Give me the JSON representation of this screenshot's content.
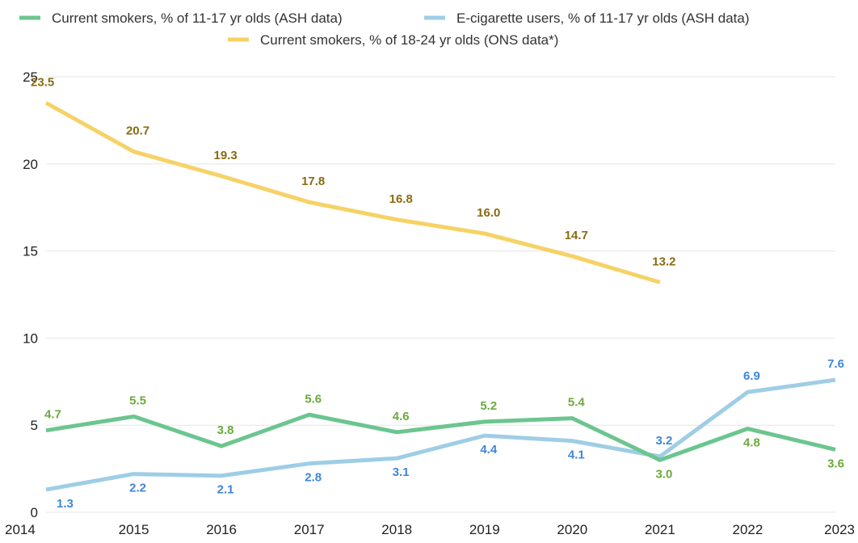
{
  "chart_data": {
    "type": "line",
    "title": "",
    "xlabel": "",
    "ylabel": "",
    "x": [
      "2014",
      "2015",
      "2016",
      "2017",
      "2018",
      "2019",
      "2020",
      "2021",
      "2022",
      "2023"
    ],
    "ylim": [
      0,
      25
    ],
    "yticks": [
      "0",
      "5",
      "10",
      "15",
      "20",
      "25"
    ],
    "grid": true,
    "legend_position": "top",
    "series": [
      {
        "name": "Current smokers, % of 11-17 yr olds (ASH data)",
        "color": "#6cc58f",
        "label_color": "#6aaa3c",
        "values": [
          4.7,
          5.5,
          3.8,
          5.6,
          4.6,
          5.2,
          5.4,
          3.0,
          4.8,
          3.6
        ],
        "labels": [
          "4.7",
          "5.5",
          "3.8",
          "5.6",
          "4.6",
          "5.2",
          "5.4",
          "3.0",
          "4.8",
          "3.6"
        ]
      },
      {
        "name": "E-cigarette users, % of 11-17 yr olds (ASH data)",
        "color": "#9fcde6",
        "label_color": "#3f86d8",
        "values": [
          1.3,
          2.2,
          2.1,
          2.8,
          3.1,
          4.4,
          4.1,
          3.2,
          6.9,
          7.6
        ],
        "labels": [
          "1.3",
          "2.2",
          "2.1",
          "2.8",
          "3.1",
          "4.4",
          "4.1",
          "3.2",
          "6.9",
          "7.6"
        ]
      },
      {
        "name": "Current smokers, % of 18-24 yr olds (ONS data*)",
        "color": "#f6d266",
        "label_color": "#8a6b10",
        "values": [
          23.5,
          20.7,
          19.3,
          17.8,
          16.8,
          16.0,
          14.7,
          13.2,
          null,
          null
        ],
        "labels": [
          "23.5",
          "20.7",
          "19.3",
          "17.8",
          "16.8",
          "16.0",
          "14.7",
          "13.2",
          null,
          null
        ]
      }
    ]
  }
}
